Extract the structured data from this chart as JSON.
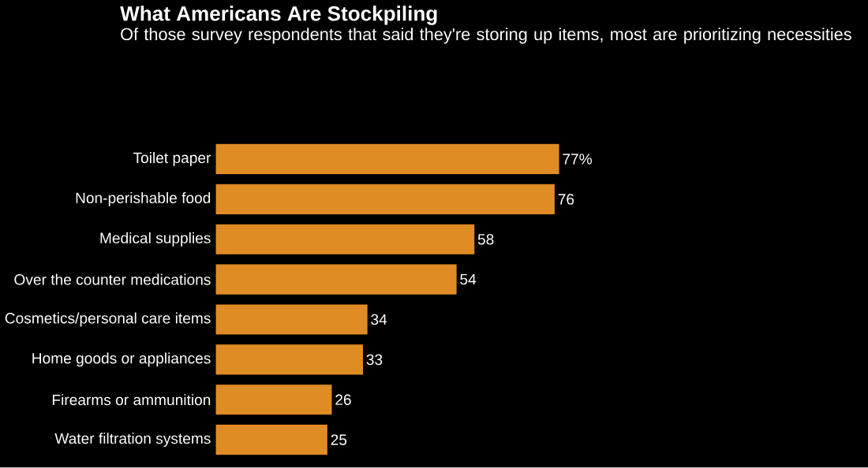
{
  "chart_data": {
    "type": "bar",
    "orientation": "horizontal",
    "title": "What Americans Are Stockpiling",
    "subtitle": "Of those survey respondents that said they're storing up items, most are prioritizing necessities",
    "categories": [
      "Toilet paper",
      "Non-perishable food",
      "Medical supplies",
      "Over the counter medications",
      "Cosmetics/personal care items",
      "Home goods or appliances",
      "Firearms or ammunition",
      "Water filtration systems"
    ],
    "values": [
      77,
      76,
      58,
      54,
      34,
      33,
      26,
      25
    ],
    "value_labels": [
      "77%",
      "76",
      "58",
      "54",
      "34",
      "33",
      "26",
      "25"
    ],
    "color": "#e08c25"
  }
}
